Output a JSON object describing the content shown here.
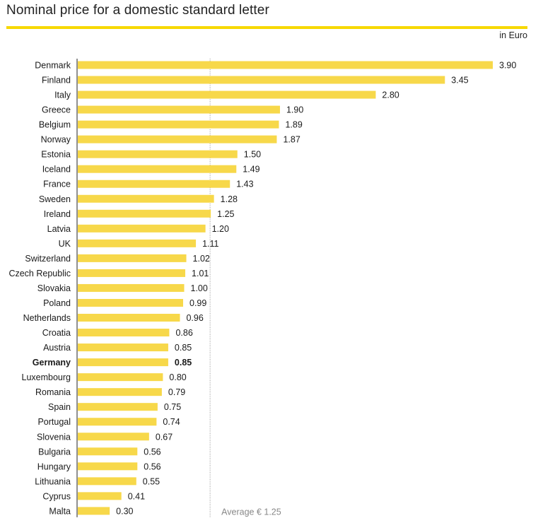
{
  "header": {
    "title": "Nominal price for a domestic standard letter",
    "unit": "in Euro"
  },
  "colors": {
    "bar": "#f7d84a",
    "accent": "#f7d800",
    "axis": "#222222",
    "average_line": "#999999"
  },
  "chart_data": {
    "type": "bar",
    "orientation": "horizontal",
    "title": "Nominal price for a domestic standard letter",
    "unit": "in Euro",
    "categories": [
      "Denmark",
      "Finland",
      "Italy",
      "Greece",
      "Belgium",
      "Norway",
      "Estonia",
      "Iceland",
      "France",
      "Sweden",
      "Ireland",
      "Latvia",
      "UK",
      "Switzerland",
      "Czech Republic",
      "Slovakia",
      "Poland",
      "Netherlands",
      "Croatia",
      "Austria",
      "Germany",
      "Luxembourg",
      "Romania",
      "Spain",
      "Portugal",
      "Slovenia",
      "Bulgaria",
      "Hungary",
      "Lithuania",
      "Cyprus",
      "Malta"
    ],
    "values": [
      3.9,
      3.45,
      2.8,
      1.9,
      1.89,
      1.87,
      1.5,
      1.49,
      1.43,
      1.28,
      1.25,
      1.2,
      1.11,
      1.02,
      1.01,
      1.0,
      0.99,
      0.96,
      0.86,
      0.85,
      0.85,
      0.8,
      0.79,
      0.75,
      0.74,
      0.67,
      0.56,
      0.56,
      0.55,
      0.41,
      0.3
    ],
    "value_labels": [
      "3.90",
      "3.45",
      "2.80",
      "1.90",
      "1.89",
      "1.87",
      "1.50",
      "1.49",
      "1.43",
      "1.28",
      "1.25",
      "1.20",
      "1.11",
      "1.02",
      "1.01",
      "1.00",
      "0.99",
      "0.96",
      "0.86",
      "0.85",
      "0.85",
      "0.80",
      "0.79",
      "0.75",
      "0.74",
      "0.67",
      "0.56",
      "0.56",
      "0.55",
      "0.41",
      "0.30"
    ],
    "highlight": "Germany",
    "average": {
      "value": 1.25,
      "label": "Average € 1.25"
    },
    "xlim": [
      0,
      3.9
    ],
    "grid": false
  }
}
